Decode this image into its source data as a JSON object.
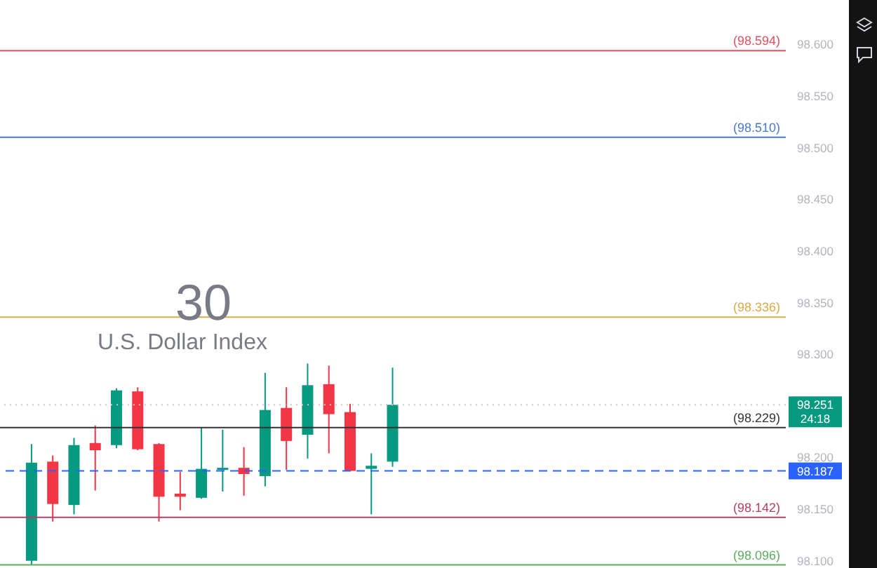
{
  "chart_data": {
    "type": "candlestick",
    "title": "U.S. Dollar Index",
    "subtitle": "30",
    "categories": [
      null,
      null,
      null,
      null,
      null,
      null,
      null,
      null,
      null,
      null,
      null,
      null,
      null,
      null,
      null,
      null,
      null,
      null,
      null,
      null,
      null,
      null,
      null,
      null,
      null,
      null,
      null,
      null,
      null,
      null,
      null,
      null,
      null,
      null,
      null,
      null,
      null
    ],
    "ohlc": [
      null,
      [
        98.1,
        98.213,
        98.096,
        98.195
      ],
      [
        98.196,
        98.202,
        98.138,
        98.155
      ],
      [
        98.154,
        98.219,
        98.145,
        98.212
      ],
      [
        98.214,
        98.231,
        98.168,
        98.207
      ],
      [
        98.212,
        98.267,
        98.209,
        98.265
      ],
      [
        98.264,
        98.268,
        98.207,
        98.208
      ],
      [
        98.213,
        98.214,
        98.138,
        98.162
      ],
      [
        98.165,
        98.186,
        98.149,
        98.162
      ],
      [
        98.161,
        98.229,
        98.16,
        98.189
      ],
      [
        98.189,
        98.227,
        98.167,
        98.19
      ],
      [
        98.19,
        98.21,
        98.163,
        98.184
      ],
      [
        98.182,
        98.282,
        98.172,
        98.246
      ],
      [
        98.248,
        98.268,
        98.188,
        98.216
      ],
      [
        98.222,
        98.291,
        98.199,
        98.27
      ],
      [
        98.271,
        98.289,
        98.204,
        98.242
      ],
      [
        98.244,
        98.252,
        98.187,
        98.187
      ],
      [
        98.189,
        98.204,
        98.145,
        98.192
      ],
      [
        98.196,
        98.287,
        98.191,
        98.251
      ],
      null,
      null,
      null,
      null,
      null,
      null,
      null,
      null,
      null,
      null,
      null,
      null,
      null,
      null,
      null,
      null,
      null,
      null
    ],
    "colors": [
      null,
      "#089981",
      "#f23645",
      "#089981",
      "#f23645",
      "#089981",
      "#f23645",
      "#f23645",
      "#f23645",
      "#089981",
      "#089981",
      "#f23645",
      "#089981",
      "#f23645",
      "#089981",
      "#f23645",
      "#f23645",
      "#089981",
      "#089981",
      null,
      null,
      null,
      null,
      null,
      null,
      null,
      null,
      null,
      null,
      null,
      null,
      null,
      null,
      null,
      null,
      null,
      null
    ],
    "ylim": [
      98.093,
      98.643
    ],
    "yticks": [
      {
        "value": 98.1,
        "label": "98.100"
      },
      {
        "value": 98.15,
        "label": "98.150"
      },
      {
        "value": 98.2,
        "label": "98.200"
      },
      {
        "value": 98.3,
        "label": "98.300"
      },
      {
        "value": 98.35,
        "label": "98.350"
      },
      {
        "value": 98.4,
        "label": "98.400"
      },
      {
        "value": 98.45,
        "label": "98.450"
      },
      {
        "value": 98.5,
        "label": "98.500"
      },
      {
        "value": 98.55,
        "label": "98.550"
      },
      {
        "value": 98.6,
        "label": "98.600"
      }
    ],
    "tick_labels": "y",
    "ref_lines": [
      {
        "axis": "y",
        "value": 98.594,
        "label": "(98.594)",
        "color": "#e0505f",
        "line_style": "solid"
      },
      {
        "axis": "y",
        "value": 98.51,
        "label": "(98.510)",
        "color": "#4a78c8",
        "line_style": "solid"
      },
      {
        "axis": "y",
        "value": 98.336,
        "label": "(98.336)",
        "color": "#d9ac4a",
        "line_style": "solid"
      },
      {
        "axis": "y",
        "value": 98.229,
        "label": "(98.229)",
        "color": "#333333",
        "line_style": "solid"
      },
      {
        "axis": "y",
        "value": 98.142,
        "label": "(98.142)",
        "color": "#b0406a",
        "line_style": "solid"
      },
      {
        "axis": "y",
        "value": 98.096,
        "label": "(98.096)",
        "color": "#5cae5c",
        "line_style": "solid"
      },
      {
        "axis": "y",
        "value": 98.251,
        "label": "98.251",
        "color": "#c8c8c8",
        "line_style": "dotted"
      },
      {
        "axis": "y",
        "value": 98.187,
        "label": "98.187",
        "color": "#2962ff",
        "line_style": "dashed"
      }
    ],
    "annotations": [
      "24:18"
    ]
  }
}
